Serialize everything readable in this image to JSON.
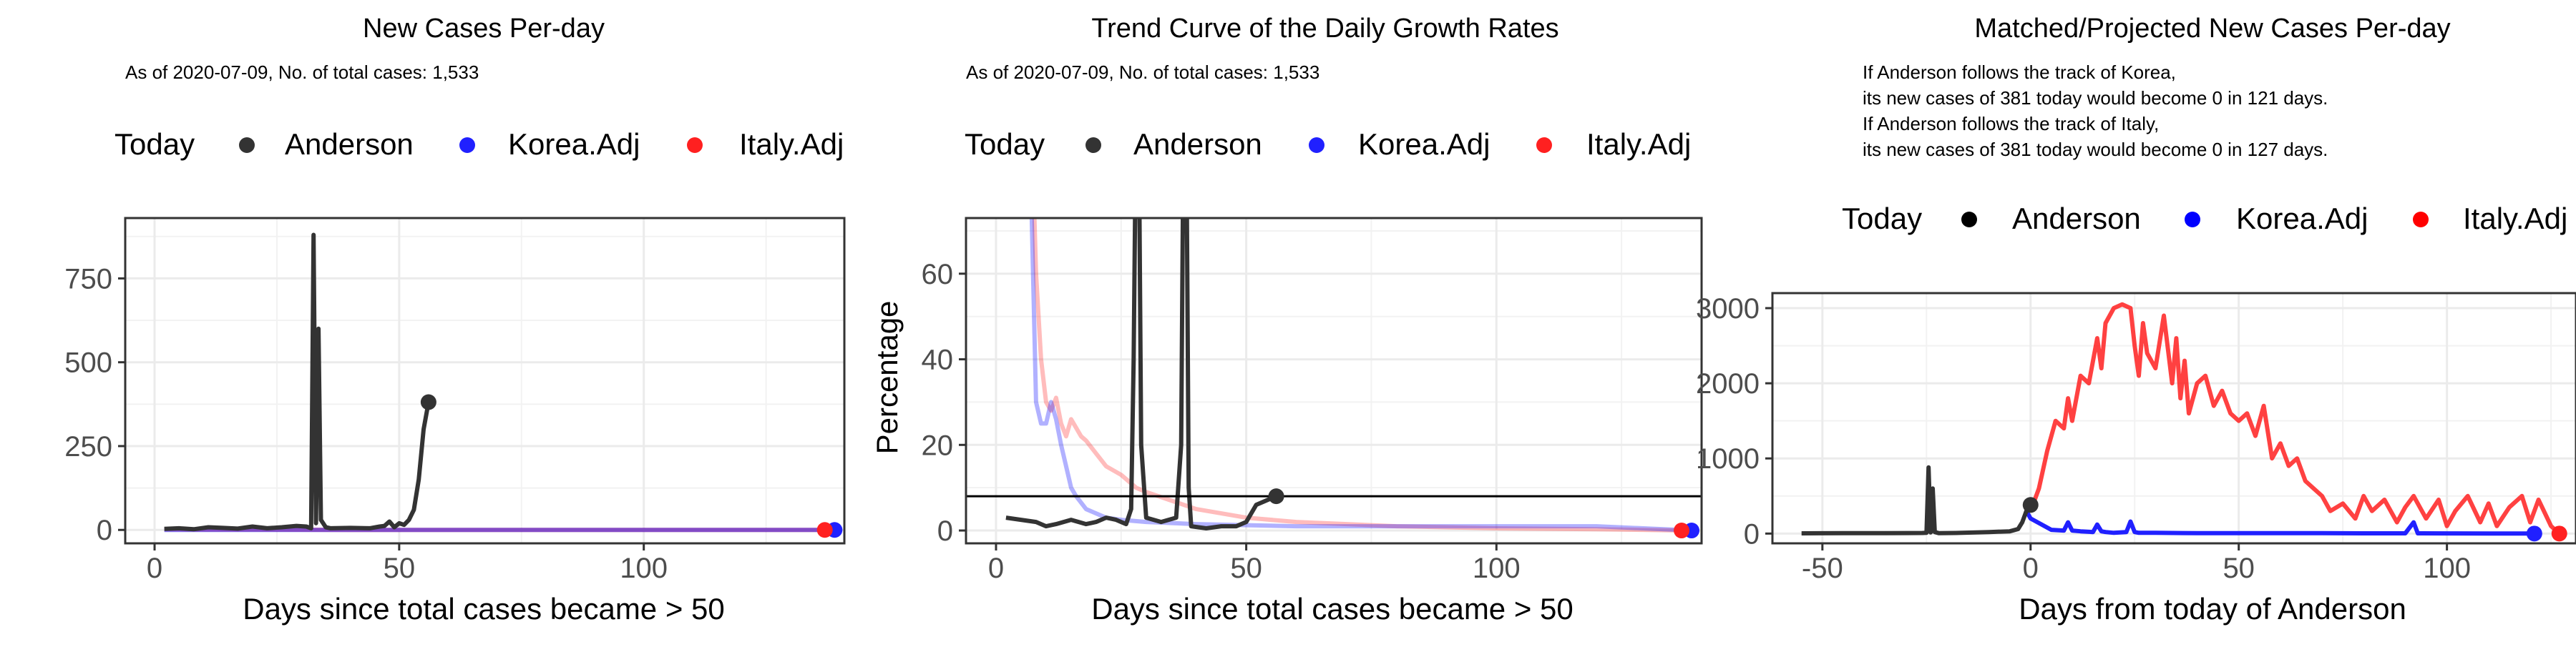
{
  "panels": [
    {
      "title": "New Cases Per-day",
      "subtitle": "As of 2020-07-09, No. of total cases: 1,533",
      "xlabel": "Days since total cases became > 50",
      "ylabel": "",
      "legend": {
        "title": "Today",
        "items": [
          "Anderson",
          "Korea.Adj",
          "Italy.Adj"
        ]
      }
    },
    {
      "title": "Trend Curve of the Daily Growth Rates",
      "subtitle": "As of 2020-07-09, No. of total cases: 1,533",
      "xlabel": "Days since total cases became > 50",
      "ylabel": "Percentage",
      "legend": {
        "title": "Today",
        "items": [
          "Anderson",
          "Korea.Adj",
          "Italy.Adj"
        ]
      }
    },
    {
      "title": "Matched/Projected New Cases Per-day",
      "notes": [
        "If Anderson follows the track of Korea,",
        "its new cases of 381 today would become 0 in 121 days.",
        "If Anderson follows the track of Italy,",
        "its new cases of 381 today would become 0 in 127 days."
      ],
      "xlabel": "Days from today of Anderson",
      "ylabel": "",
      "legend": {
        "title": "Today",
        "items": [
          "Anderson",
          "Korea.Adj",
          "Italy.Adj"
        ]
      }
    }
  ],
  "colors": {
    "anderson": "#333333",
    "korea": "#2020ff",
    "italy": "#ff2020",
    "grid": "#ebebeb",
    "axis": "#333333"
  },
  "chart_data": [
    {
      "type": "line",
      "title": "New Cases Per-day",
      "xlim": [
        -6,
        141
      ],
      "ylim": [
        -40,
        930
      ],
      "xticks": [
        0,
        50,
        100
      ],
      "yticks": [
        0,
        250,
        500,
        750
      ],
      "series": [
        {
          "name": "Anderson",
          "x": [
            2,
            5,
            8,
            11,
            14,
            17,
            20,
            23,
            26,
            29,
            31,
            32,
            32.5,
            33,
            33.5,
            34,
            35,
            36,
            40,
            44,
            46,
            47,
            48,
            49,
            50,
            51,
            52,
            53,
            54,
            55,
            56
          ],
          "y": [
            3,
            5,
            2,
            8,
            6,
            4,
            10,
            5,
            8,
            12,
            10,
            5,
            880,
            20,
            600,
            30,
            8,
            5,
            6,
            5,
            10,
            12,
            25,
            8,
            20,
            15,
            30,
            60,
            150,
            300,
            381
          ]
        },
        {
          "name": "Korea.Adj",
          "x": [
            2,
            10,
            20,
            40,
            60,
            80,
            100,
            120,
            139
          ],
          "y": [
            0,
            0,
            0,
            0,
            0,
            0,
            0,
            0,
            0
          ]
        },
        {
          "name": "Italy.Adj",
          "x": [
            2,
            10,
            20,
            40,
            60,
            80,
            100,
            120,
            137
          ],
          "y": [
            2,
            1,
            1,
            0,
            0,
            0,
            0,
            0,
            0
          ]
        }
      ],
      "today_points": [
        {
          "series": "Anderson",
          "x": 56,
          "y": 381
        },
        {
          "series": "Korea.Adj",
          "x": 139,
          "y": 0
        },
        {
          "series": "Italy.Adj",
          "x": 137,
          "y": 0
        }
      ]
    },
    {
      "type": "line",
      "title": "Trend Curve of the Daily Growth Rates",
      "xlim": [
        -6,
        141
      ],
      "ylim": [
        -3,
        73
      ],
      "xticks": [
        0,
        50,
        100
      ],
      "yticks": [
        0,
        20,
        40,
        60
      ],
      "hline": 8,
      "series": [
        {
          "name": "Anderson",
          "x": [
            2,
            5,
            8,
            10,
            12,
            15,
            18,
            20,
            22,
            24,
            26,
            27,
            27.5,
            28,
            28.5,
            29,
            30,
            33,
            36,
            37,
            37.5,
            38,
            38.5,
            39,
            42,
            45,
            48,
            50,
            52,
            54,
            56
          ],
          "y": [
            3,
            2.5,
            2,
            1,
            1.5,
            2.5,
            1.5,
            2,
            3,
            2.5,
            1.5,
            5,
            40,
            100,
            100,
            20,
            3,
            2,
            3,
            20,
            100,
            100,
            10,
            1,
            0.5,
            1,
            1,
            2,
            6,
            7,
            8
          ]
        },
        {
          "name": "Korea.Adj",
          "x": [
            6,
            7,
            8,
            9,
            10,
            11,
            12,
            13,
            14,
            15,
            16,
            18,
            20,
            22,
            25,
            30,
            40,
            60,
            80,
            100,
            120,
            139
          ],
          "y": [
            100,
            80,
            30,
            25,
            25,
            30,
            26,
            20,
            15,
            10,
            8,
            5,
            4,
            3,
            2.5,
            2,
            1.5,
            1,
            1,
            1,
            1,
            0
          ]
        },
        {
          "name": "Italy.Adj",
          "x": [
            7,
            8,
            9,
            10,
            11,
            12,
            13,
            14,
            15,
            16,
            17,
            18,
            20,
            22,
            25,
            28,
            30,
            35,
            40,
            45,
            50,
            60,
            80,
            100,
            120,
            137
          ],
          "y": [
            100,
            60,
            40,
            30,
            28,
            31,
            25,
            22,
            26,
            24,
            22,
            21,
            18,
            15,
            13,
            10,
            9,
            7,
            5,
            4,
            3,
            2,
            1,
            0.5,
            0.3,
            0
          ]
        }
      ],
      "today_points": [
        {
          "series": "Anderson",
          "x": 56,
          "y": 8
        },
        {
          "series": "Korea.Adj",
          "x": 139,
          "y": 0
        },
        {
          "series": "Italy.Adj",
          "x": 137,
          "y": 0
        }
      ]
    },
    {
      "type": "line",
      "title": "Matched/Projected New Cases Per-day",
      "xlim": [
        -62,
        131
      ],
      "ylim": [
        -130,
        3200
      ],
      "xticks": [
        -50,
        0,
        50,
        100
      ],
      "yticks": [
        0,
        1000,
        2000,
        3000
      ],
      "series": [
        {
          "name": "Anderson",
          "x": [
            -55,
            -45,
            -35,
            -26,
            -25,
            -24.5,
            -24,
            -23.5,
            -23,
            -22,
            -18,
            -10,
            -5,
            -3,
            -2,
            -1,
            0
          ],
          "y": [
            3,
            5,
            6,
            8,
            10,
            880,
            15,
            600,
            20,
            5,
            8,
            20,
            30,
            60,
            150,
            300,
            381
          ]
        },
        {
          "name": "Korea.Adj",
          "x": [
            -1,
            0,
            5,
            8,
            9,
            10,
            12,
            15,
            16,
            17,
            18,
            20,
            23,
            24,
            25,
            26,
            30,
            40,
            50,
            60,
            70,
            80,
            90,
            92,
            93,
            94,
            100,
            110,
            121
          ],
          "y": [
            300,
            200,
            50,
            40,
            150,
            40,
            30,
            20,
            120,
            30,
            20,
            10,
            20,
            160,
            20,
            10,
            10,
            5,
            5,
            5,
            5,
            3,
            3,
            150,
            3,
            3,
            2,
            1,
            0
          ]
        },
        {
          "name": "Italy.Adj",
          "x": [
            0,
            2,
            4,
            6,
            8,
            9,
            10,
            12,
            14,
            16,
            17,
            18,
            20,
            22,
            24,
            25,
            26,
            27,
            28,
            30,
            32,
            34,
            35,
            36,
            37,
            38,
            40,
            42,
            44,
            46,
            48,
            50,
            52,
            54,
            56,
            58,
            60,
            62,
            64,
            66,
            68,
            70,
            72,
            75,
            78,
            80,
            82,
            85,
            88,
            90,
            92,
            95,
            98,
            100,
            102,
            105,
            108,
            110,
            112,
            115,
            118,
            120,
            122,
            125,
            127
          ],
          "y": [
            300,
            600,
            1100,
            1500,
            1400,
            1800,
            1500,
            2100,
            2000,
            2600,
            2200,
            2800,
            3000,
            3050,
            3000,
            2500,
            2100,
            2800,
            2400,
            2200,
            2900,
            2000,
            2600,
            1800,
            2300,
            1600,
            2000,
            2100,
            1700,
            1900,
            1600,
            1500,
            1600,
            1300,
            1700,
            1000,
            1200,
            900,
            1000,
            700,
            600,
            500,
            300,
            400,
            200,
            500,
            300,
            450,
            150,
            350,
            500,
            200,
            450,
            100,
            300,
            500,
            150,
            400,
            100,
            350,
            500,
            150,
            450,
            100,
            0
          ]
        }
      ],
      "today_points": [
        {
          "series": "Anderson",
          "x": 0,
          "y": 381
        },
        {
          "series": "Korea.Adj",
          "x": 121,
          "y": 0
        },
        {
          "series": "Italy.Adj",
          "x": 127,
          "y": 0
        }
      ]
    }
  ]
}
